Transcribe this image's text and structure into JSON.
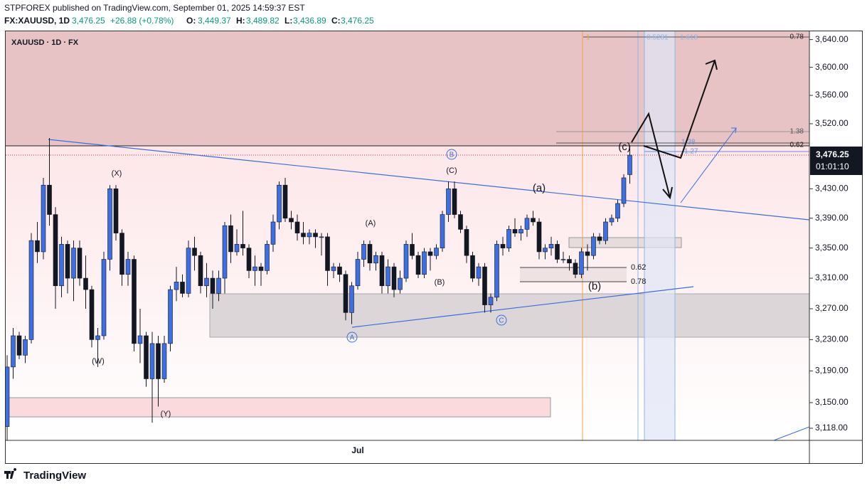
{
  "header": {
    "publisher": "STPFOREX published on TradingView.com, September 01, 2025 14:59:37 EST",
    "symbol": "FX:XAUUSD, 1D",
    "last": "3,476.25",
    "change": "+26.88 (+0.78%)",
    "ohlc": [
      {
        "label": "O:",
        "value": "3,449.37"
      },
      {
        "label": "H:",
        "value": "3,489.82"
      },
      {
        "label": "L:",
        "value": "3,436.89"
      },
      {
        "label": "C:",
        "value": "3,476.25"
      }
    ]
  },
  "footer": {
    "brand": "TradingView"
  },
  "chart_data": {
    "type": "candlestick",
    "title": "XAUUSD · 1D · FX",
    "log_scale": true,
    "up_color": "#3d6fe0",
    "down_color": "#131722",
    "categories": [
      null,
      null,
      null,
      null,
      null,
      null,
      null,
      null,
      null,
      null,
      null,
      null,
      null,
      null,
      null,
      null,
      null,
      null,
      null,
      null,
      null,
      null,
      null,
      null,
      null,
      null,
      null,
      null,
      null,
      null,
      null,
      null,
      null,
      null,
      null,
      null,
      null,
      null,
      null,
      null,
      null,
      null,
      null,
      null,
      null,
      null,
      null,
      null,
      null,
      null,
      null,
      null,
      null,
      null,
      null,
      null,
      null,
      null,
      "Jul",
      null,
      null,
      null,
      null,
      null,
      null,
      null,
      null,
      null,
      null,
      null,
      null,
      null,
      null,
      null,
      null,
      null,
      null,
      null,
      null,
      null,
      null,
      null,
      null,
      null,
      null,
      null,
      null,
      null,
      null,
      null,
      null,
      null,
      null,
      null,
      null,
      null,
      null,
      null,
      null,
      null,
      null,
      null,
      null,
      null
    ],
    "open": [
      3120,
      3195,
      3235,
      3210,
      3230,
      3360,
      3345,
      3435,
      3395,
      3300,
      3355,
      3310,
      3350,
      3310,
      3295,
      3230,
      3235,
      3335,
      3430,
      3370,
      3315,
      3335,
      3225,
      3235,
      3180,
      3225,
      3180,
      3225,
      3295,
      3305,
      3290,
      3350,
      3340,
      3300,
      3310,
      3290,
      3310,
      3380,
      3345,
      3355,
      3350,
      3320,
      3325,
      3320,
      3355,
      3385,
      3435,
      3390,
      3385,
      3370,
      3365,
      3370,
      3365,
      3365,
      3320,
      3325,
      3315,
      3265,
      3300,
      3335,
      3355,
      3330,
      3340,
      3300,
      3325,
      3295,
      3310,
      3355,
      3340,
      3315,
      3345,
      3340,
      3350,
      3395,
      3430,
      3395,
      3375,
      3340,
      3310,
      3325,
      3275,
      3285,
      3355,
      3350,
      3375,
      3370,
      3375,
      3390,
      3385,
      3345,
      3350,
      3355,
      3335,
      3335,
      3330,
      3315,
      3345,
      3340,
      3365,
      3360,
      3385,
      3390,
      3410,
      3449.37
    ],
    "high": [
      3210,
      3245,
      3240,
      3235,
      3370,
      3385,
      3445,
      3500,
      3405,
      3365,
      3360,
      3360,
      3360,
      3340,
      3300,
      3245,
      3345,
      3435,
      3435,
      3375,
      3345,
      3340,
      3270,
      3240,
      3240,
      3235,
      3235,
      3300,
      3325,
      3315,
      3360,
      3365,
      3345,
      3330,
      3320,
      3320,
      3385,
      3395,
      3375,
      3400,
      3355,
      3340,
      3330,
      3360,
      3395,
      3440,
      3445,
      3400,
      3395,
      3385,
      3375,
      3375,
      3370,
      3370,
      3330,
      3330,
      3320,
      3305,
      3345,
      3360,
      3360,
      3345,
      3345,
      3335,
      3330,
      3320,
      3360,
      3370,
      3345,
      3350,
      3350,
      3355,
      3400,
      3440,
      3440,
      3400,
      3380,
      3345,
      3330,
      3330,
      3290,
      3360,
      3365,
      3380,
      3390,
      3380,
      3395,
      3400,
      3390,
      3355,
      3365,
      3360,
      3345,
      3340,
      3335,
      3350,
      3355,
      3370,
      3370,
      3390,
      3395,
      3415,
      3450,
      3489.82
    ],
    "low": [
      3100,
      3180,
      3205,
      3200,
      3225,
      3330,
      3335,
      3380,
      3270,
      3285,
      3290,
      3280,
      3300,
      3270,
      3220,
      3195,
      3230,
      3320,
      3360,
      3300,
      3300,
      3215,
      3200,
      3170,
      3125,
      3145,
      3175,
      3215,
      3280,
      3285,
      3285,
      3320,
      3290,
      3285,
      3270,
      3280,
      3290,
      3330,
      3340,
      3340,
      3310,
      3300,
      3300,
      3315,
      3345,
      3375,
      3385,
      3375,
      3360,
      3355,
      3355,
      3350,
      3340,
      3300,
      3310,
      3305,
      3255,
      3250,
      3295,
      3325,
      3320,
      3320,
      3290,
      3290,
      3285,
      3290,
      3305,
      3335,
      3310,
      3310,
      3320,
      3335,
      3345,
      3385,
      3390,
      3370,
      3330,
      3305,
      3300,
      3265,
      3265,
      3280,
      3340,
      3345,
      3365,
      3360,
      3365,
      3380,
      3335,
      3335,
      3340,
      3330,
      3330,
      3320,
      3310,
      3310,
      3320,
      3335,
      3355,
      3355,
      3380,
      3385,
      3405,
      3436.89
    ],
    "close": [
      3195,
      3235,
      3210,
      3230,
      3360,
      3345,
      3435,
      3395,
      3300,
      3355,
      3310,
      3350,
      3310,
      3295,
      3230,
      3235,
      3335,
      3430,
      3370,
      3315,
      3335,
      3225,
      3235,
      3180,
      3225,
      3180,
      3225,
      3295,
      3305,
      3290,
      3350,
      3340,
      3300,
      3310,
      3290,
      3310,
      3380,
      3345,
      3355,
      3350,
      3320,
      3325,
      3320,
      3355,
      3385,
      3435,
      3390,
      3385,
      3370,
      3365,
      3370,
      3365,
      3365,
      3320,
      3325,
      3315,
      3265,
      3300,
      3335,
      3355,
      3330,
      3340,
      3300,
      3325,
      3295,
      3310,
      3355,
      3340,
      3315,
      3345,
      3340,
      3350,
      3395,
      3430,
      3395,
      3375,
      3340,
      3310,
      3325,
      3275,
      3285,
      3355,
      3350,
      3375,
      3370,
      3375,
      3390,
      3385,
      3345,
      3350,
      3355,
      3335,
      3335,
      3330,
      3315,
      3345,
      3340,
      3365,
      3360,
      3385,
      3390,
      3410,
      3445,
      3476.25
    ],
    "ylim": [
      3103,
      3652
    ],
    "yticks": [
      {
        "value": 3640,
        "label": "3,640.00"
      },
      {
        "value": 3600,
        "label": "3,600.00"
      },
      {
        "value": 3560,
        "label": "3,560.00"
      },
      {
        "value": 3520,
        "label": "3,520.00"
      },
      {
        "value": 3430,
        "label": "3,430.00"
      },
      {
        "value": 3390,
        "label": "3,390.00"
      },
      {
        "value": 3350,
        "label": "3,350.00"
      },
      {
        "value": 3310,
        "label": "3,310.00"
      },
      {
        "value": 3270,
        "label": "3,270.00"
      },
      {
        "value": 3230,
        "label": "3,230.00"
      },
      {
        "value": 3190,
        "label": "3,190.00"
      },
      {
        "value": 3150,
        "label": "3,150.00"
      },
      {
        "value": 3118,
        "label": "3,118.00"
      }
    ],
    "last_price": {
      "value": 3476.25,
      "label": "3,476.25"
    },
    "countdown": "01:01:10",
    "annotations": [
      "(X)",
      "(W)",
      "(Y)",
      "(A)",
      "(B)",
      "(C)",
      "(a)",
      "(b)",
      "(c)",
      "A",
      "B",
      "C",
      "0.62",
      "0.78",
      "1.38",
      "0.62",
      "1.38",
      "1.27",
      "0.78",
      "1",
      "0.5281",
      "1.618"
    ]
  }
}
